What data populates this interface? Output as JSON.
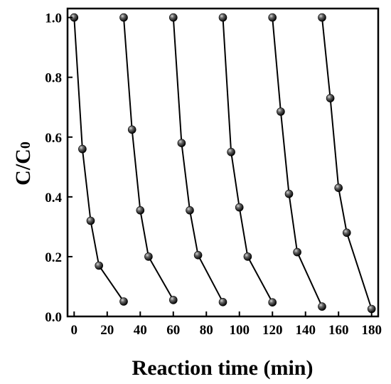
{
  "chart_data": {
    "type": "line",
    "xlabel": "Reaction time (min)",
    "ylabel": {
      "main": "C/C",
      "subscript": "0"
    },
    "xlim": [
      -4,
      184
    ],
    "ylim": [
      0,
      1.03
    ],
    "x_ticks": [
      0,
      20,
      40,
      60,
      80,
      100,
      120,
      140,
      160,
      180
    ],
    "y_ticks": [
      0.0,
      0.2,
      0.4,
      0.6,
      0.8,
      1.0
    ],
    "x_tick_labels": [
      "0",
      "20",
      "40",
      "60",
      "80",
      "100",
      "120",
      "140",
      "160",
      "180"
    ],
    "y_tick_labels": [
      "0.0",
      "0.2",
      "0.4",
      "0.6",
      "0.8",
      "1.0"
    ],
    "grid": false,
    "legend": false,
    "line_color": "#000000",
    "marker": "sphere",
    "series": [
      {
        "x": [
          0,
          5,
          10,
          15,
          30
        ],
        "y": [
          1.0,
          0.56,
          0.32,
          0.17,
          0.05
        ]
      },
      {
        "x": [
          30,
          35,
          40,
          45,
          60
        ],
        "y": [
          1.0,
          0.625,
          0.355,
          0.2,
          0.055
        ]
      },
      {
        "x": [
          60,
          65,
          70,
          75,
          90
        ],
        "y": [
          1.0,
          0.58,
          0.355,
          0.205,
          0.048
        ]
      },
      {
        "x": [
          90,
          95,
          100,
          105,
          120
        ],
        "y": [
          1.0,
          0.55,
          0.365,
          0.2,
          0.047
        ]
      },
      {
        "x": [
          120,
          125,
          130,
          135,
          150
        ],
        "y": [
          1.0,
          0.685,
          0.41,
          0.215,
          0.033
        ]
      },
      {
        "x": [
          150,
          155,
          160,
          165,
          180
        ],
        "y": [
          1.0,
          0.73,
          0.43,
          0.28,
          0.025
        ]
      }
    ]
  }
}
